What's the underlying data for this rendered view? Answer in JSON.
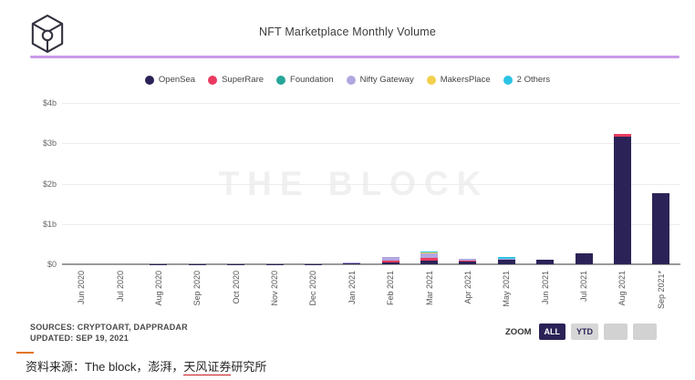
{
  "header": {
    "title": "NFT Marketplace Monthly Volume",
    "logo": "the-block-logo",
    "divider_color": "#c89ae9"
  },
  "watermark": "THE BLOCK",
  "chart_data": {
    "type": "bar",
    "stacked": true,
    "title": "NFT Marketplace Monthly Volume",
    "ylabel": "",
    "xlabel": "",
    "ylim": [
      0,
      4
    ],
    "y_ticks": [
      "$0",
      "$1b",
      "$2b",
      "$3b",
      "$4b"
    ],
    "grid": true,
    "legend_position": "top",
    "unit": "$ billions",
    "categories": [
      "Jun 2020",
      "Jul 2020",
      "Aug 2020",
      "Sep 2020",
      "Oct 2020",
      "Nov 2020",
      "Dec 2020",
      "Jan 2021",
      "Feb 2021",
      "Mar 2021",
      "Apr 2021",
      "May 2021",
      "Jun 2021",
      "Jul 2021",
      "Aug 2021",
      "Sep 2021*"
    ],
    "series": [
      {
        "name": "OpenSea",
        "color": "#2b2357",
        "values": [
          0.0,
          0.0,
          0.01,
          0.01,
          0.01,
          0.01,
          0.01,
          0.02,
          0.05,
          0.09,
          0.07,
          0.11,
          0.11,
          0.27,
          3.16,
          1.77
        ]
      },
      {
        "name": "SuperRare",
        "color": "#e93a60",
        "values": [
          0.0,
          0.0,
          0.0,
          0.0,
          0.0,
          0.0,
          0.0,
          0.01,
          0.03,
          0.06,
          0.01,
          0.01,
          0.0,
          0.0,
          0.07,
          0.0
        ]
      },
      {
        "name": "Foundation",
        "color": "#27a699",
        "values": [
          0.0,
          0.0,
          0.0,
          0.0,
          0.0,
          0.0,
          0.0,
          0.0,
          0.01,
          0.01,
          0.0,
          0.0,
          0.0,
          0.0,
          0.0,
          0.0
        ]
      },
      {
        "name": "Nifty Gateway",
        "color": "#b3a7e0",
        "values": [
          0.0,
          0.0,
          0.0,
          0.0,
          0.0,
          0.0,
          0.0,
          0.01,
          0.09,
          0.11,
          0.05,
          0.01,
          0.0,
          0.0,
          0.0,
          0.0
        ]
      },
      {
        "name": "MakersPlace",
        "color": "#f3d04c",
        "values": [
          0.0,
          0.0,
          0.0,
          0.0,
          0.0,
          0.0,
          0.0,
          0.0,
          0.01,
          0.03,
          0.0,
          0.0,
          0.0,
          0.0,
          0.0,
          0.0
        ]
      },
      {
        "name": "2 Others",
        "color": "#2bc4e6",
        "values": [
          0.0,
          0.0,
          0.0,
          0.0,
          0.0,
          0.0,
          0.0,
          0.0,
          0.0,
          0.01,
          0.0,
          0.05,
          0.0,
          0.0,
          0.01,
          0.0
        ]
      }
    ]
  },
  "footer": {
    "sources_line1": "SOURCES: CRYPTOART, DAPPRADAR",
    "sources_line2": "UPDATED: SEP 19, 2021",
    "zoom_label": "ZOOM",
    "zoom_selected_bg": "#2b2357",
    "zoom_buttons": [
      {
        "label": "ALL",
        "selected": true
      },
      {
        "label": "YTD",
        "selected": false
      },
      {
        "label": "",
        "selected": false
      },
      {
        "label": "",
        "selected": false
      }
    ]
  },
  "caption": {
    "prefix": "资料来源：The block，澎湃，",
    "underlined": "天风证券",
    "suffix": "研究所"
  }
}
